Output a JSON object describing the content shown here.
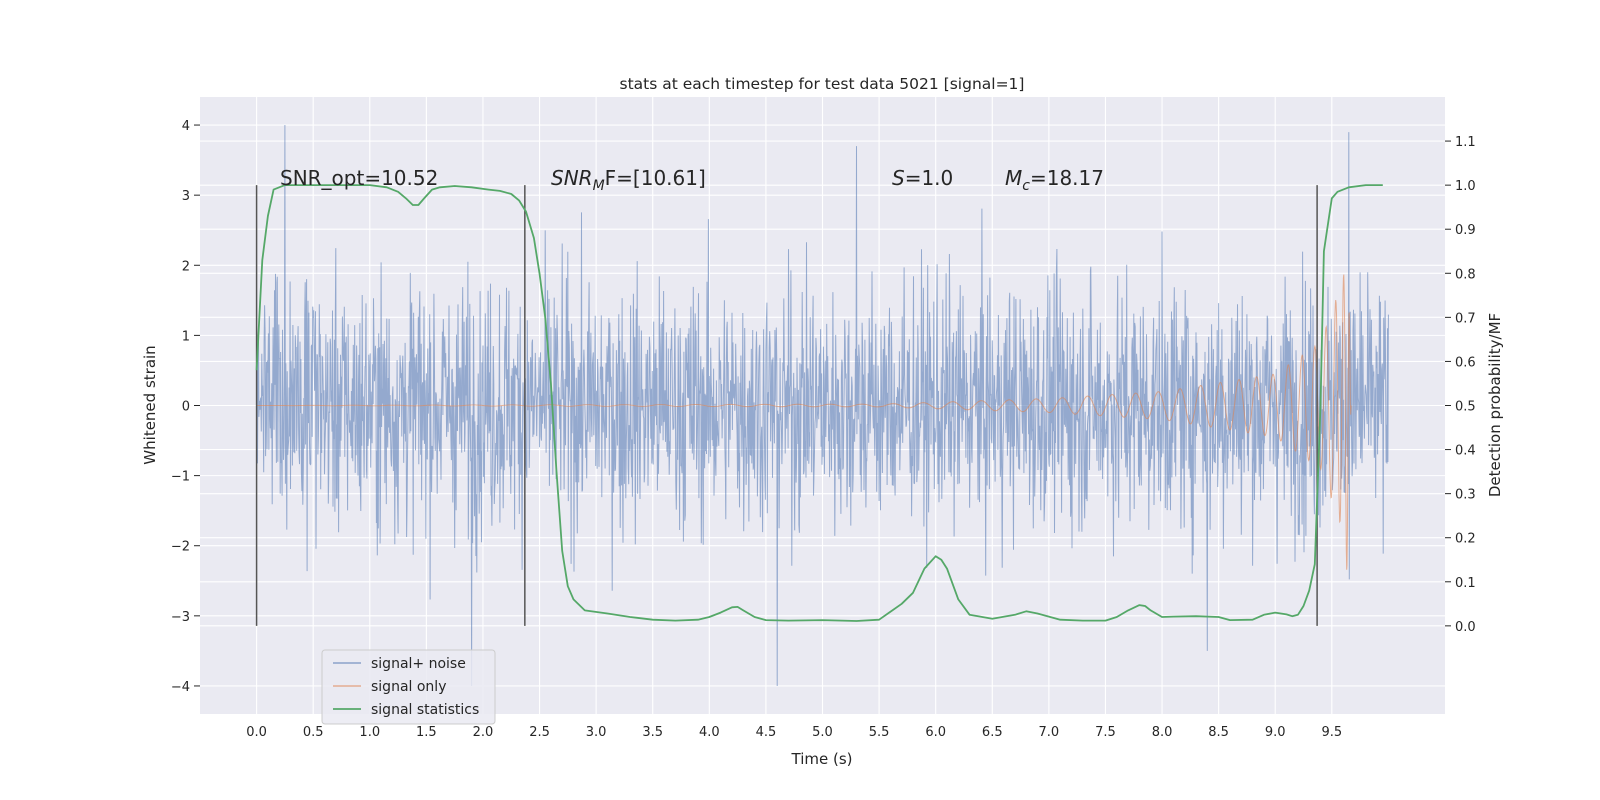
{
  "chart_data": {
    "type": "line",
    "title": "stats at each timestep for test data 5021 [signal=1]",
    "xlabel": "Time (s)",
    "ylabel_left": "Whitened strain",
    "ylabel_right": "Detection probability/MF",
    "xlim": [
      -0.5,
      10.5
    ],
    "ylim_left": [
      -4.4,
      4.4
    ],
    "ylim_right": [
      -0.2,
      1.2
    ],
    "x_ticks": [
      "0.0",
      "0.5",
      "1.0",
      "1.5",
      "2.0",
      "2.5",
      "3.0",
      "3.5",
      "4.0",
      "4.5",
      "5.0",
      "5.5",
      "6.0",
      "6.5",
      "7.0",
      "7.5",
      "8.0",
      "8.5",
      "9.0",
      "9.5"
    ],
    "y_ticks_left": [
      "4",
      "3",
      "2",
      "1",
      "0",
      "−1",
      "−2",
      "−3",
      "−4"
    ],
    "y_ticks_right": [
      "1.1",
      "1.0",
      "0.9",
      "0.8",
      "0.7",
      "0.6",
      "0.5",
      "0.4",
      "0.3",
      "0.2",
      "0.1",
      "0.0"
    ],
    "grid": true,
    "legend_position": "lower-left",
    "annotations": {
      "snr_opt": "SNR_opt=10.52",
      "snr_mf_base": "SNR",
      "snr_mf_sub": "M",
      "snr_mf_rest": "F=[10.61]",
      "s_italic": "S",
      "s_rest": "=1.0",
      "mc_base": "M",
      "mc_sub": "c",
      "mc_rest": "=18.17"
    },
    "vlines_x": [
      0.0,
      2.37,
      9.37
    ],
    "series": [
      {
        "name": "signal+ noise",
        "color": "#4c72b0",
        "kind": "noise",
        "description_only": false,
        "x_range": [
          0.0,
          10.0
        ],
        "approx_spread": 1.3,
        "approx_peaks": [
          [
            0.25,
            4.0
          ],
          [
            5.3,
            3.7
          ],
          [
            9.65,
            3.9
          ],
          [
            4.6,
            -4.0
          ],
          [
            1.9,
            -4.0
          ],
          [
            8.4,
            -3.5
          ]
        ]
      },
      {
        "name": "signal only",
        "color": "#dd8452",
        "kind": "chirp",
        "x_range": [
          0.0,
          9.67
        ],
        "amplitude_envelope": [
          [
            5.5,
            0.02
          ],
          [
            7.0,
            0.1
          ],
          [
            8.0,
            0.2
          ],
          [
            9.0,
            0.45
          ],
          [
            9.4,
            0.9
          ],
          [
            9.6,
            1.8
          ],
          [
            9.64,
            2.5
          ],
          [
            9.67,
            0.0
          ]
        ]
      },
      {
        "name": "signal statistics",
        "color": "#55a868",
        "kind": "line",
        "axis": "right",
        "x": [
          0.0,
          0.05,
          0.1,
          0.15,
          0.25,
          0.4,
          0.6,
          0.8,
          1.0,
          1.15,
          1.25,
          1.32,
          1.38,
          1.43,
          1.48,
          1.55,
          1.62,
          1.75,
          1.9,
          2.05,
          2.15,
          2.25,
          2.32,
          2.38,
          2.45,
          2.5,
          2.55,
          2.6,
          2.65,
          2.7,
          2.75,
          2.8,
          2.9,
          3.1,
          3.3,
          3.5,
          3.7,
          3.9,
          4.0,
          4.1,
          4.2,
          4.25,
          4.3,
          4.4,
          4.5,
          4.7,
          5.0,
          5.3,
          5.5,
          5.7,
          5.8,
          5.9,
          6.0,
          6.05,
          6.1,
          6.2,
          6.3,
          6.5,
          6.7,
          6.8,
          6.9,
          7.1,
          7.3,
          7.5,
          7.6,
          7.7,
          7.8,
          7.85,
          7.9,
          8.0,
          8.1,
          8.3,
          8.5,
          8.6,
          8.8,
          8.9,
          9.0,
          9.1,
          9.15,
          9.2,
          9.25,
          9.3,
          9.35,
          9.4,
          9.43,
          9.5,
          9.55,
          9.65,
          9.8,
          9.95
        ],
        "y": [
          0.58,
          0.83,
          0.93,
          0.99,
          1.0,
          1.0,
          1.0,
          1.0,
          1.0,
          0.995,
          0.985,
          0.97,
          0.955,
          0.955,
          0.97,
          0.99,
          0.995,
          0.998,
          0.995,
          0.99,
          0.987,
          0.98,
          0.965,
          0.94,
          0.88,
          0.8,
          0.7,
          0.55,
          0.35,
          0.17,
          0.09,
          0.06,
          0.035,
          0.028,
          0.02,
          0.014,
          0.012,
          0.014,
          0.02,
          0.03,
          0.042,
          0.043,
          0.035,
          0.02,
          0.013,
          0.012,
          0.013,
          0.011,
          0.014,
          0.05,
          0.075,
          0.13,
          0.158,
          0.15,
          0.13,
          0.06,
          0.025,
          0.016,
          0.025,
          0.033,
          0.028,
          0.014,
          0.012,
          0.012,
          0.02,
          0.035,
          0.047,
          0.045,
          0.035,
          0.02,
          0.021,
          0.022,
          0.02,
          0.013,
          0.014,
          0.025,
          0.03,
          0.026,
          0.022,
          0.025,
          0.045,
          0.08,
          0.14,
          0.5,
          0.85,
          0.97,
          0.985,
          0.995,
          1.0,
          1.0
        ]
      }
    ]
  }
}
